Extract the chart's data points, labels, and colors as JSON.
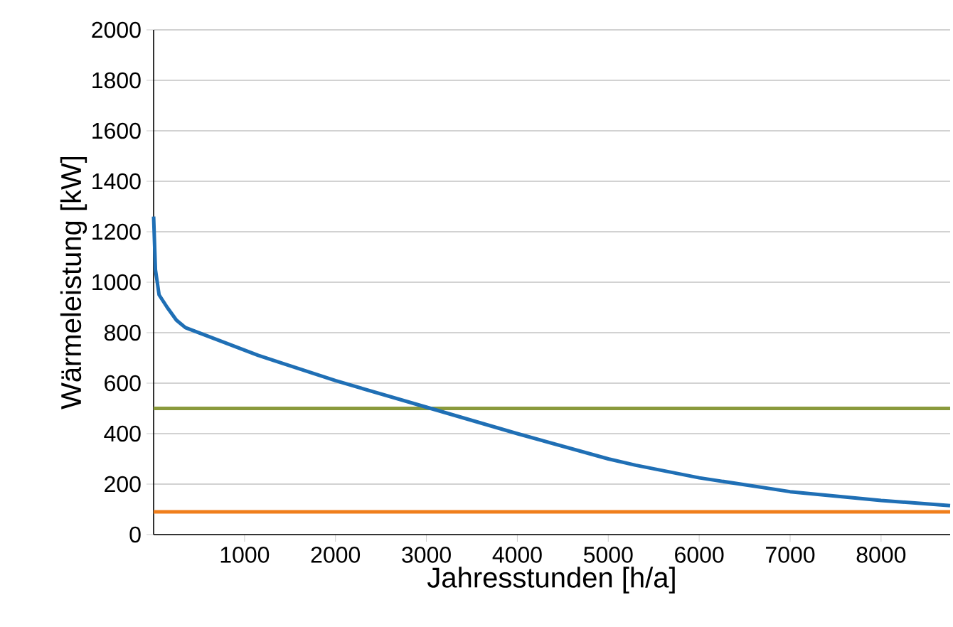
{
  "chart_data": {
    "type": "line",
    "xlabel": "Jahresstunden [h/a]",
    "ylabel": "Wärmeleistung [kW]",
    "series": [
      {
        "color": "#1f6fb5",
        "x": [
          0,
          20,
          60,
          150,
          250,
          350,
          1150,
          2000,
          3000,
          4000,
          5000,
          5300,
          6000,
          7000,
          8000,
          8760
        ],
        "values": [
          1260,
          1050,
          950,
          900,
          850,
          820,
          710,
          610,
          505,
          400,
          300,
          275,
          225,
          170,
          135,
          115
        ]
      }
    ],
    "xlim": [
      0,
      8760
    ],
    "ylim": [
      0,
      2000
    ],
    "xticks": [
      1000,
      2000,
      3000,
      4000,
      5000,
      6000,
      7000,
      8000
    ],
    "yticks": [
      0,
      200,
      400,
      600,
      800,
      1000,
      1200,
      1400,
      1600,
      1800,
      2000
    ],
    "ref_lines": [
      {
        "axis": "y",
        "value": 500,
        "color": "#8a9a3c"
      },
      {
        "axis": "y",
        "value": 90,
        "color": "#f07f1c"
      }
    ],
    "grid": "y",
    "marker": "none",
    "line_style": "solid"
  }
}
